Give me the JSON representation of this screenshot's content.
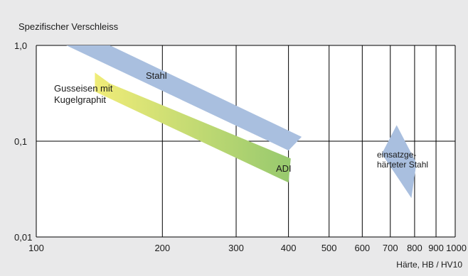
{
  "chart_data": {
    "type": "area",
    "title": "",
    "ylabel": "Spezifischer Verschleiss",
    "xlabel": "Härte, HB / HV10",
    "x_scale": "log",
    "y_scale": "log",
    "xlim": [
      100,
      1000
    ],
    "ylim": [
      0.01,
      1.0
    ],
    "x_ticks": [
      100,
      200,
      300,
      400,
      500,
      600,
      700,
      800,
      900,
      1000
    ],
    "x_tick_labels": [
      "100",
      "200",
      "300",
      "400",
      "500",
      "600",
      "700",
      "800",
      "900",
      "1000"
    ],
    "y_ticks": [
      0.01,
      0.1,
      1.0
    ],
    "y_tick_labels": [
      "0,01",
      "0,1",
      "1,0"
    ],
    "grid": true,
    "colors": {
      "background": "#e9e9ea",
      "plot_area": "#ffffff",
      "grid": "#000000",
      "stahl_band": "#a9bfdf",
      "einsatz_band": "#a9bfdf",
      "guss_start": "#f0ec78",
      "guss_end": "#97c96e"
    },
    "series": [
      {
        "name": "Stahl",
        "shape": "band",
        "polygon": [
          [
            118,
            1.0
          ],
          [
            150,
            1.0
          ],
          [
            430,
            0.111
          ],
          [
            400,
            0.08
          ]
        ]
      },
      {
        "name": "Gusseisen mit Kugelgraphit",
        "shape": "band",
        "polygon": [
          [
            138,
            0.52
          ],
          [
            150,
            0.4
          ],
          [
            405,
            0.066
          ],
          [
            400,
            0.037
          ],
          [
            138,
            0.33
          ]
        ]
      },
      {
        "name": "ADI",
        "shape": "band_label",
        "polygon": []
      },
      {
        "name": "einsatzgehärteter Stahl",
        "shape": "diamond",
        "polygon": [
          [
            725,
            0.147
          ],
          [
            808,
            0.059
          ],
          [
            786,
            0.0255
          ],
          [
            668,
            0.074
          ]
        ]
      }
    ],
    "annotations": {
      "stahl": "Stahl",
      "guss_line1": "Gusseisen mit",
      "guss_line2": "Kugelgraphit",
      "adi": "ADI",
      "einsatz_line1": "einsatzge-",
      "einsatz_line2": "härteter Stahl"
    }
  }
}
